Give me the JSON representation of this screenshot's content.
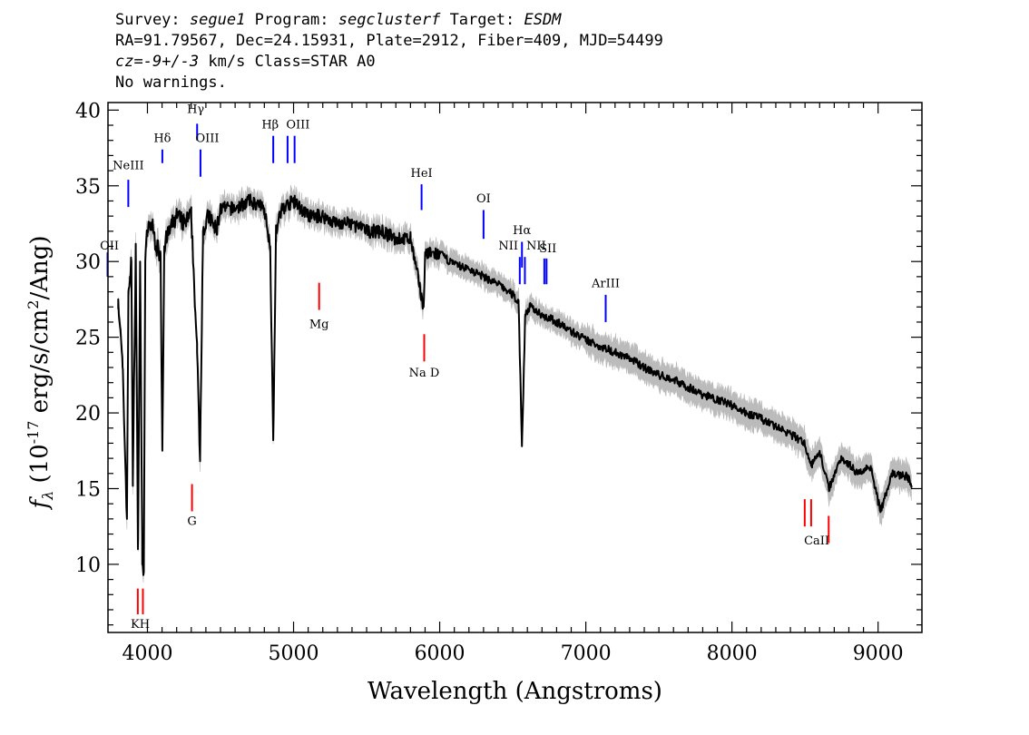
{
  "header": {
    "survey_label": "Survey:",
    "survey": "segue1",
    "program_label": "Program:",
    "program": "segclusterf",
    "target_label": "Target:",
    "target": "ESDM",
    "line2": "RA=91.79567, Dec=24.15931, Plate=2912, Fiber=409, MJD=54499",
    "cz_label": "cz=",
    "cz": "-9+/-3",
    "cz_unit": "km/s Class=STAR A0",
    "warnings": "No warnings."
  },
  "chart_data": {
    "type": "line",
    "xlabel": "Wavelength (Angstroms)",
    "ylabel": "f_λ (10^-17 erg/s/cm^2/Ang)",
    "xlim": [
      3730,
      9300
    ],
    "ylim": [
      5.5,
      40.5
    ],
    "xticks": [
      4000,
      5000,
      6000,
      7000,
      8000,
      9000
    ],
    "yticks": [
      10,
      15,
      20,
      25,
      30,
      35,
      40
    ],
    "colors": {
      "spectrum": "#000000",
      "error": "#bbbbbb",
      "emission": "#0000ff",
      "absorption": "#ff0000"
    },
    "series": [
      {
        "x": [
          3800,
          3830,
          3860,
          3870,
          3880,
          3890,
          3900,
          3920,
          3935,
          3950,
          3965,
          3975,
          3985,
          4000,
          4030,
          4060,
          4090,
          4102,
          4115,
          4150,
          4200,
          4250,
          4300,
          4340,
          4360,
          4380,
          4420,
          4471,
          4500,
          4600,
          4700,
          4800,
          4840,
          4861,
          4880,
          4920,
          5000,
          5100,
          5200,
          5300,
          5400,
          5500,
          5600,
          5700,
          5800,
          5890,
          5900,
          6000,
          6100,
          6200,
          6300,
          6400,
          6500,
          6540,
          6563,
          6585,
          6620,
          6700,
          6800,
          6900,
          7000,
          7100,
          7200,
          7300,
          7400,
          7500,
          7600,
          7700,
          7800,
          7900,
          8000,
          8100,
          8200,
          8300,
          8400,
          8498,
          8542,
          8600,
          8662,
          8750,
          8863,
          8950,
          9015,
          9100,
          9200,
          9230
        ],
        "values": [
          27.5,
          23,
          13,
          28,
          29,
          30,
          15.5,
          31,
          11,
          30,
          10,
          9.5,
          30,
          32,
          32.5,
          31,
          30.5,
          17.5,
          31,
          32,
          33,
          32.5,
          33,
          24,
          17,
          32,
          33,
          32,
          33.5,
          33.5,
          34,
          33.5,
          31,
          18.2,
          32,
          33.5,
          34,
          33,
          33,
          32.5,
          32.5,
          32,
          32,
          31.5,
          31.5,
          27,
          30.5,
          30.5,
          29.8,
          29.5,
          29,
          28.5,
          27.8,
          27.3,
          17.8,
          26.5,
          27,
          26.5,
          26,
          25.4,
          24.8,
          24.4,
          24,
          23.6,
          23,
          22.5,
          22.2,
          21.7,
          21.2,
          20.9,
          20.5,
          20,
          19.6,
          19.1,
          18.6,
          18,
          16.5,
          17.5,
          15,
          17.1,
          16,
          16.5,
          13.5,
          16,
          15.8,
          15.2
        ]
      }
    ],
    "emission_lines": [
      {
        "label": "OII",
        "x": 3727,
        "y_bottom": 29,
        "y_top": 30.6
      },
      {
        "label": "NeIII",
        "x": 3869,
        "y_bottom": 33.6,
        "y_top": 35.4
      },
      {
        "label": "Hδ",
        "x": 4102,
        "y_bottom": 36.5,
        "y_top": 37.4
      },
      {
        "label": "Hγ",
        "x": 4340,
        "y_bottom": 38,
        "y_top": 39.1
      },
      {
        "label": "OIII",
        "x": 4363,
        "y_bottom": 35.6,
        "y_top": 37.4
      },
      {
        "label": "Hβ",
        "x": 4861,
        "y_bottom": 36.5,
        "y_top": 38.3
      },
      {
        "label": "OIII",
        "x": 4959,
        "y_bottom": 36.5,
        "y_top": 38.3
      },
      {
        "label": "OIII",
        "x": 5007,
        "y_bottom": 36.5,
        "y_top": 38.3
      },
      {
        "label": "HeI",
        "x": 5876,
        "y_bottom": 33.4,
        "y_top": 35.1
      },
      {
        "label": "OI",
        "x": 6300,
        "y_bottom": 31.5,
        "y_top": 33.4
      },
      {
        "label": "NII",
        "x": 6548,
        "y_bottom": 28.5,
        "y_top": 30.3
      },
      {
        "label": "Hα",
        "x": 6563,
        "y_bottom": 29.6,
        "y_top": 31.3
      },
      {
        "label": "NII",
        "x": 6583,
        "y_bottom": 28.5,
        "y_top": 30.3
      },
      {
        "label": "SII",
        "x": 6716,
        "y_bottom": 28.5,
        "y_top": 30.2
      },
      {
        "label": "SII",
        "x": 6731,
        "y_bottom": 28.5,
        "y_top": 30.2
      },
      {
        "label": "ArIII",
        "x": 7136,
        "y_bottom": 26,
        "y_top": 27.8
      }
    ],
    "absorption_lines": [
      {
        "label": "K",
        "x": 3934,
        "y_bottom": 6.7,
        "y_top": 8.4
      },
      {
        "label": "H",
        "x": 3969,
        "y_bottom": 6.7,
        "y_top": 8.4
      },
      {
        "label": "G",
        "x": 4305,
        "y_bottom": 13.5,
        "y_top": 15.3
      },
      {
        "label": "Mg",
        "x": 5175,
        "y_bottom": 26.8,
        "y_top": 28.6
      },
      {
        "label": "Na D",
        "x": 5894,
        "y_bottom": 23.4,
        "y_top": 25.2
      },
      {
        "label": "CaII",
        "x": 8498,
        "y_bottom": 12.5,
        "y_top": 14.3
      },
      {
        "label": "CaII",
        "x": 8542,
        "y_bottom": 12.5,
        "y_top": 14.3
      },
      {
        "label": "CaII",
        "x": 8662,
        "y_bottom": 11.4,
        "y_top": 13.2
      }
    ],
    "line_labels": [
      {
        "text": "OII",
        "x": 3740,
        "y": 30.8
      },
      {
        "text": "NeIII",
        "x": 3869,
        "y": 36.1
      },
      {
        "text": "Hδ",
        "x": 4102,
        "y": 37.9
      },
      {
        "text": "Hγ",
        "x": 4330,
        "y": 39.8
      },
      {
        "text": "OIII",
        "x": 4410,
        "y": 37.9
      },
      {
        "text": "Hβ",
        "x": 4840,
        "y": 38.8
      },
      {
        "text": "OIII",
        "x": 5030,
        "y": 38.8
      },
      {
        "text": "HeI",
        "x": 5876,
        "y": 35.6
      },
      {
        "text": "OI",
        "x": 6300,
        "y": 33.9
      },
      {
        "text": "NII",
        "x": 6470,
        "y": 30.8
      },
      {
        "text": "Hα",
        "x": 6563,
        "y": 31.8
      },
      {
        "text": "NII",
        "x": 6660,
        "y": 30.8
      },
      {
        "text": "SII",
        "x": 6740,
        "y": 30.6
      },
      {
        "text": "ArIII",
        "x": 7136,
        "y": 28.3
      },
      {
        "text": "KH",
        "x": 3951,
        "y": 5.8
      },
      {
        "text": "G",
        "x": 4305,
        "y": 12.6
      },
      {
        "text": "Mg",
        "x": 5175,
        "y": 25.6
      },
      {
        "text": "Na  D",
        "x": 5894,
        "y": 22.4
      },
      {
        "text": "CaII",
        "x": 8580,
        "y": 11.3
      }
    ]
  }
}
